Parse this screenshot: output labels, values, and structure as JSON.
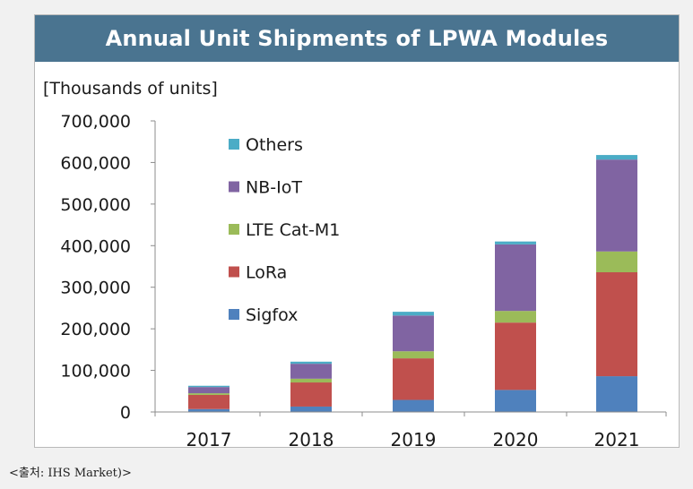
{
  "chart_data": {
    "type": "bar",
    "stacked": true,
    "title": "Annual Unit Shipments of LPWA Modules",
    "ylabel": "[Thousands of units]",
    "xlabel": "",
    "categories": [
      "2017",
      "2018",
      "2019",
      "2020",
      "2021"
    ],
    "ylim": [
      0,
      700000
    ],
    "yticks": [
      0,
      100000,
      200000,
      300000,
      400000,
      500000,
      600000,
      700000
    ],
    "ytick_labels": [
      "0",
      "100,000",
      "200,000",
      "300,000",
      "400,000",
      "500,000",
      "600,000",
      "700,000"
    ],
    "legend_position": "top-left",
    "series": [
      {
        "name": "Sigfox",
        "color": "#4f81bd",
        "values": [
          7000,
          13000,
          29000,
          53000,
          86000
        ]
      },
      {
        "name": "LoRa",
        "color": "#c0504d",
        "values": [
          34000,
          58000,
          100000,
          162000,
          250000
        ]
      },
      {
        "name": "LTE Cat-M1",
        "color": "#9bbb59",
        "values": [
          4000,
          9000,
          17000,
          28000,
          50000
        ]
      },
      {
        "name": "NB-IoT",
        "color": "#8064a2",
        "values": [
          15000,
          36000,
          86000,
          160000,
          221000
        ]
      },
      {
        "name": "Others",
        "color": "#4bacc6",
        "values": [
          3000,
          5000,
          9000,
          7000,
          11000
        ]
      }
    ]
  },
  "source_note": "<출처: IHS Market)>"
}
